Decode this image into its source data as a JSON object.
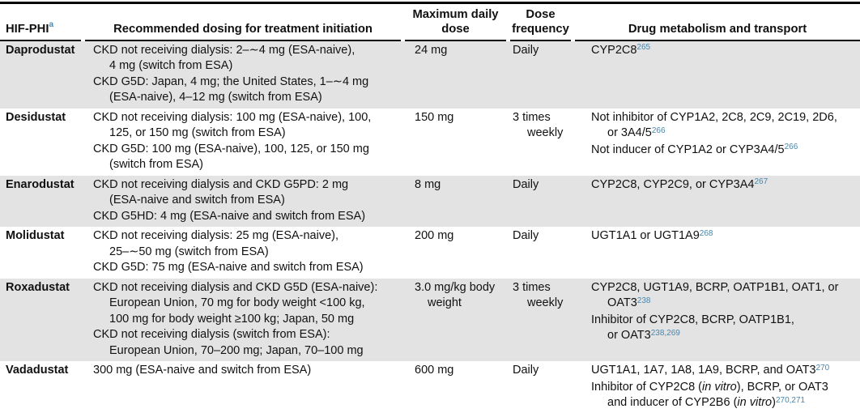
{
  "colors": {
    "stripe_gray": "#e3e3e3",
    "citation_blue": "#4787ad",
    "border_black": "#000000"
  },
  "header": {
    "col1": {
      "label": "HIF-PHI",
      "footnote": "a"
    },
    "col2": "Recommended dosing for treatment initiation",
    "col3": "Maximum daily dose",
    "col4": "Dose frequency",
    "col5": "Drug metabolism and transport"
  },
  "rows": [
    {
      "name": "Daprodustat",
      "striped": true,
      "dosing": [
        {
          "text": "CKD not receiving dialysis: 2–∼4 mg (ESA-naive),",
          "indent": false
        },
        {
          "text": "4 mg (switch from ESA)",
          "indent": true
        },
        {
          "text": "CKD G5D: Japan, 4 mg; the United States, 1–∼4 mg",
          "indent": false
        },
        {
          "text": "(ESA-naive), 4–12 mg (switch from ESA)",
          "indent": true
        }
      ],
      "max_dose": [
        {
          "text": "24 mg",
          "indent": false
        }
      ],
      "frequency": [
        {
          "text": "Daily",
          "indent": false
        }
      ],
      "metabolism": [
        {
          "indent": false,
          "segments": [
            {
              "t": "CYP2C8"
            },
            {
              "t": "265",
              "sup": true
            }
          ]
        }
      ]
    },
    {
      "name": "Desidustat",
      "striped": false,
      "dosing": [
        {
          "text": "CKD not receiving dialysis: 100 mg (ESA-naive), 100,",
          "indent": false
        },
        {
          "text": "125, or 150 mg (switch from ESA)",
          "indent": true
        },
        {
          "text": "CKD G5D: 100 mg (ESA-naive), 100, 125, or 150 mg",
          "indent": false
        },
        {
          "text": "(switch from ESA)",
          "indent": true
        }
      ],
      "max_dose": [
        {
          "text": "150 mg",
          "indent": false
        }
      ],
      "frequency": [
        {
          "text": "3 times",
          "indent": false
        },
        {
          "text": "weekly",
          "indent": true
        }
      ],
      "metabolism": [
        {
          "indent": false,
          "segments": [
            {
              "t": "Not inhibitor of CYP1A2, 2C8, 2C9, 2C19, 2D6,"
            }
          ]
        },
        {
          "indent": true,
          "segments": [
            {
              "t": "or 3A4/5"
            },
            {
              "t": "266",
              "sup": true
            }
          ]
        },
        {
          "indent": false,
          "segments": [
            {
              "t": "Not inducer of CYP1A2 or CYP3A4/5"
            },
            {
              "t": "266",
              "sup": true
            }
          ]
        }
      ]
    },
    {
      "name": "Enarodustat",
      "striped": true,
      "dosing": [
        {
          "text": "CKD not receiving dialysis and CKD G5PD: 2 mg",
          "indent": false
        },
        {
          "text": "(ESA-naive and switch from ESA)",
          "indent": true
        },
        {
          "text": "CKD G5HD: 4 mg (ESA-naive and switch from ESA)",
          "indent": false
        }
      ],
      "max_dose": [
        {
          "text": "8 mg",
          "indent": false
        }
      ],
      "frequency": [
        {
          "text": "Daily",
          "indent": false
        }
      ],
      "metabolism": [
        {
          "indent": false,
          "segments": [
            {
              "t": "CYP2C8, CYP2C9, or CYP3A4"
            },
            {
              "t": "267",
              "sup": true
            }
          ]
        }
      ]
    },
    {
      "name": "Molidustat",
      "striped": false,
      "dosing": [
        {
          "text": "CKD not receiving dialysis: 25 mg (ESA-naive),",
          "indent": false
        },
        {
          "text": "25–∼50 mg (switch from ESA)",
          "indent": true
        },
        {
          "text": "CKD G5D: 75 mg (ESA-naive and switch from ESA)",
          "indent": false
        }
      ],
      "max_dose": [
        {
          "text": "200 mg",
          "indent": false
        }
      ],
      "frequency": [
        {
          "text": "Daily",
          "indent": false
        }
      ],
      "metabolism": [
        {
          "indent": false,
          "segments": [
            {
              "t": "UGT1A1 or UGT1A9"
            },
            {
              "t": "268",
              "sup": true
            }
          ]
        }
      ]
    },
    {
      "name": "Roxadustat",
      "striped": true,
      "dosing": [
        {
          "text": "CKD not receiving dialysis and CKD G5D (ESA-naive):",
          "indent": false
        },
        {
          "text": "European Union, 70 mg for body weight <100 kg,",
          "indent": true
        },
        {
          "text": "100 mg for body weight ≥100 kg; Japan, 50 mg",
          "indent": true
        },
        {
          "text": "CKD not receiving dialysis (switch from ESA):",
          "indent": false
        },
        {
          "text": "European Union, 70–200 mg; Japan, 70–100 mg",
          "indent": true
        }
      ],
      "max_dose": [
        {
          "text": "3.0 mg/kg body",
          "indent": false
        },
        {
          "text": "weight",
          "indent": true
        }
      ],
      "frequency": [
        {
          "text": "3 times",
          "indent": false
        },
        {
          "text": "weekly",
          "indent": true
        }
      ],
      "metabolism": [
        {
          "indent": false,
          "segments": [
            {
              "t": "CYP2C8, UGT1A9, BCRP, OATP1B1, OAT1, or"
            }
          ]
        },
        {
          "indent": true,
          "segments": [
            {
              "t": "OAT3"
            },
            {
              "t": "238",
              "sup": true
            }
          ]
        },
        {
          "indent": false,
          "segments": [
            {
              "t": "Inhibitor of CYP2C8, BCRP, OATP1B1,"
            }
          ]
        },
        {
          "indent": true,
          "segments": [
            {
              "t": "or OAT3"
            },
            {
              "t": "238,269",
              "sup": true
            }
          ]
        }
      ]
    },
    {
      "name": "Vadadustat",
      "striped": false,
      "dosing": [
        {
          "text": "300 mg (ESA-naive and switch from ESA)",
          "indent": false
        }
      ],
      "max_dose": [
        {
          "text": "600 mg",
          "indent": false
        }
      ],
      "frequency": [
        {
          "text": "Daily",
          "indent": false
        }
      ],
      "metabolism": [
        {
          "indent": false,
          "segments": [
            {
              "t": "UGT1A1, 1A7, 1A8, 1A9, BCRP, and OAT3"
            },
            {
              "t": "270",
              "sup": true
            }
          ]
        },
        {
          "indent": false,
          "segments": [
            {
              "t": "Inhibitor of CYP2C8 ("
            },
            {
              "t": "in vitro",
              "it": true
            },
            {
              "t": "), BCRP, or OAT3"
            }
          ]
        },
        {
          "indent": true,
          "segments": [
            {
              "t": "and inducer of CYP2B6 ("
            },
            {
              "t": "in vitro",
              "it": true
            },
            {
              "t": ")"
            },
            {
              "t": "270,271",
              "sup": true
            }
          ]
        }
      ]
    }
  ]
}
